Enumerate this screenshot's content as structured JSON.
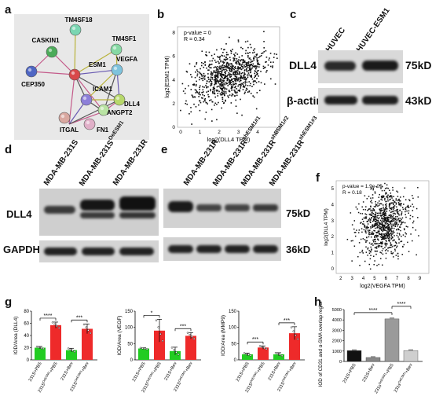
{
  "panels": {
    "a": {
      "letter": "a",
      "nodes": [
        "TM4SF18",
        "CASKIN1",
        "TM4SF1",
        "ESM1",
        "VEGFA",
        "CEP350",
        "ICAM1",
        "DLL4",
        "ITGAL",
        "ANGPT2",
        "FN1"
      ],
      "node_colors": {
        "TM4SF18": "#7ad6b2",
        "CASKIN1": "#4daa5a",
        "TM4SF1": "#86d9a4",
        "ESM1": "#d8484a",
        "VEGFA": "#7ec3dd",
        "CEP350": "#4f66c4",
        "ICAM1": "#8d7fd9",
        "DLL4": "#b7d86b",
        "ITGAL": "#d9a8a0",
        "ANGPT2": "#b9e3a3",
        "FN1": "#e0b0c8"
      }
    },
    "b": {
      "letter": "b",
      "stats_line1": "p-value = 0",
      "stats_line2": "R = 0.34",
      "xlabel": "log2(DLL4 TPM)",
      "ylabel": "log2(ESM1 TPM)",
      "xticks": [
        "0",
        "1",
        "2",
        "3",
        "4",
        "5"
      ],
      "yticks": [
        "0",
        "2",
        "4",
        "6",
        "8"
      ]
    },
    "c": {
      "letter": "c",
      "lanes": [
        "HUVEC",
        "HUVEC-ESM1"
      ],
      "bands": [
        {
          "name": "DLL4",
          "kd": "75kD"
        },
        {
          "name": "β-actin",
          "kd": "43kD"
        }
      ]
    },
    "d": {
      "letter": "d",
      "lanes": [
        "MDA-MB-231S",
        "MDA-MB-231S",
        "MDA-MB-231R"
      ],
      "lane2_super": "OeESM1",
      "bands": [
        {
          "name": "DLL4"
        },
        {
          "name": "GAPDH"
        }
      ]
    },
    "e": {
      "letter": "e",
      "lanes": [
        "MDA-MB-231R",
        "MDA-MB-231R",
        "MDA-MB-231R",
        "MDA-MB-231R"
      ],
      "lane_supers": [
        "",
        "shESM1#1",
        "shESM1#2",
        "shESM1#3"
      ],
      "bands": [
        {
          "kd": "75kD"
        },
        {
          "kd": "36kD"
        }
      ]
    },
    "f": {
      "letter": "f",
      "stats_line1": "p-value = 1.9e-09",
      "stats_line2": "R = 0.18",
      "xlabel": "log2(VEGFA TPM)",
      "ylabel": "log2(DLL4 TPM)",
      "xticks": [
        "2",
        "3",
        "4",
        "5",
        "6",
        "7",
        "8",
        "9"
      ],
      "yticks": [
        "0",
        "1",
        "2",
        "3",
        "4",
        "5"
      ]
    },
    "g": {
      "letter": "g",
      "charts": [
        {
          "ylabel": "IOD/Area (DLL4)",
          "ymax": 80,
          "yticks": [
            "0",
            "20",
            "40",
            "60",
            "80"
          ],
          "categories": [
            "231S+PBS",
            "231S+PBS",
            "231S+Bev",
            "231S+Bev"
          ],
          "values": [
            20,
            57,
            16,
            51
          ],
          "errors": [
            2,
            5,
            3,
            8
          ],
          "sig": [
            {
              "from": 0,
              "to": 1,
              "label": "****"
            },
            {
              "from": 2,
              "to": 3,
              "label": "***"
            }
          ]
        },
        {
          "ylabel": "IOD/Area (VEGF)",
          "ymax": 150,
          "yticks": [
            "0",
            "50",
            "100",
            "150"
          ],
          "categories": [
            "231S+PBS",
            "231S+PBS",
            "231S+Bev",
            "231S+Bev"
          ],
          "values": [
            35,
            90,
            27,
            74
          ],
          "errors": [
            2,
            35,
            12,
            10
          ],
          "sig": [
            {
              "from": 0,
              "to": 1,
              "label": "*"
            },
            {
              "from": 2,
              "to": 3,
              "label": "***"
            }
          ]
        },
        {
          "ylabel": "IOD/Area (MMP9)",
          "ymax": 150,
          "yticks": [
            "0",
            "50",
            "100",
            "150"
          ],
          "categories": [
            "231S+PBS",
            "231S+PBS",
            "231S+Bev",
            "231S+Bev"
          ],
          "values": [
            17,
            38,
            17,
            82
          ],
          "errors": [
            4,
            5,
            5,
            20
          ],
          "sig": [
            {
              "from": 0,
              "to": 1,
              "label": "***"
            },
            {
              "from": 2,
              "to": 3,
              "label": "***"
            }
          ]
        }
      ],
      "super_labels": [
        "",
        "OeESM1",
        "",
        "OeESM1"
      ],
      "colors": [
        "#22cc22",
        "#ee2a2a",
        "#22cc22",
        "#ee2a2a"
      ]
    },
    "h": {
      "letter": "h",
      "ylabel": "IOD of CD31 and α-SMA overlap region",
      "yticks": [
        "0",
        "1000",
        "2000",
        "3000",
        "4000",
        "5000"
      ],
      "ymax": 5000,
      "categories": [
        "231S+PBS",
        "231S+Bev",
        "231s+PBS",
        "231s+Bev"
      ],
      "super_labels": [
        "",
        "",
        "OeESM1",
        "OeESM1"
      ],
      "values": [
        1050,
        380,
        4100,
        1050
      ],
      "colors": [
        "#111111",
        "#888888",
        "#9a9a9a",
        "#cfcfcf"
      ],
      "sig": [
        {
          "from": 0,
          "to": 2,
          "label": "****"
        },
        {
          "from": 2,
          "to": 3,
          "label": "****"
        }
      ]
    }
  }
}
